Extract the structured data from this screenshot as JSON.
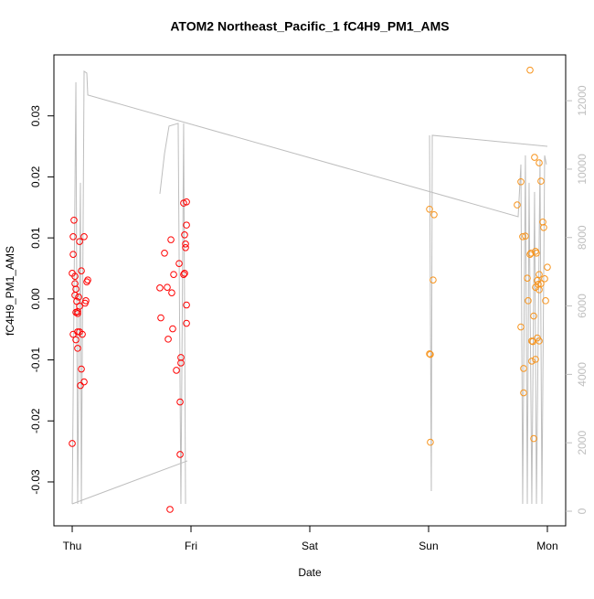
{
  "chart_data": {
    "type": "scatter",
    "title": "ATOM2 Northeast_Pacific_1 fC4H9_PM1_AMS",
    "x_label": "Date",
    "y_label": "fC4H9_PM1_AMS",
    "xlim": [
      -0.154,
      4.154
    ],
    "ylim": [
      -0.0372,
      0.04
    ],
    "y2lim": [
      -428,
      13340
    ],
    "xticks": [
      {
        "value": 0,
        "label": "Thu"
      },
      {
        "value": 1,
        "label": "Fri"
      },
      {
        "value": 2,
        "label": "Sat"
      },
      {
        "value": 3,
        "label": "Sun"
      },
      {
        "value": 4,
        "label": "Mon"
      }
    ],
    "yticks": [
      -0.03,
      -0.02,
      -0.01,
      {
        "value": 0,
        "label": "0.00"
      },
      0.01,
      0.02,
      0.03
    ],
    "y2ticks": [
      0,
      2000,
      4000,
      6000,
      8000,
      10000,
      12000
    ],
    "series": [
      {
        "color": "#bebebe",
        "axis": "y2",
        "kind": "line",
        "x": [
          0,
          0.031,
          0.046,
          0.069,
          0.077,
          0.1,
          0.123,
          0.131,
          3.754,
          3.777,
          3.792,
          3.815,
          3.831,
          3.846,
          3.869,
          3.892,
          3.908,
          3.938,
          3.954,
          3.977,
          3.992,
          null,
          0,
          0.969,
          null,
          0.738,
          0.777,
          0.815,
          0.892,
          0.915,
          0.938,
          0.954,
          null,
          3.008,
          3.023,
          3.031,
          4.0
        ],
        "values": [
          214,
          12540,
          214,
          9599,
          214,
          12861,
          12807,
          12166,
          8610,
          10134,
          214,
          10401,
          214,
          9599,
          214,
          9332,
          214,
          10267,
          214,
          10401,
          10134,
          null,
          214,
          1471,
          null,
          9278,
          10455,
          11257,
          11337,
          214,
          11337,
          214,
          null,
          10989,
          588,
          10989,
          10668
        ]
      },
      {
        "color": "#ff0000",
        "kind": "points",
        "x": [
          0.015,
          0.008,
          0.008,
          0,
          0.023,
          0.023,
          0.031,
          0.023,
          0.038,
          0.046,
          0.031,
          0.046,
          0.062,
          0.054,
          0.077,
          0.1,
          0.062,
          0.131,
          0.123,
          0.115,
          0.108,
          0.008,
          0.031,
          0.046,
          0.046,
          0.062,
          0.085,
          0.077,
          0.069,
          0.1,
          0,
          0.738,
          0.746,
          0.777,
          0.8,
          0.808,
          0.831,
          0.838,
          0.854,
          0.846,
          0.877,
          0.9,
          0.915,
          0.915,
          0.908,
          0.938,
          0.946,
          0.946,
          0.954,
          0.954,
          0.938,
          0.962,
          0.962,
          0.962,
          0.962,
          0.908,
          0.823
        ],
        "values": [
          0.0129,
          0.0102,
          0.0073,
          0.0042,
          0.0037,
          0.0025,
          0.0016,
          0.0006,
          -0.0004,
          -0.0024,
          -0.0022,
          -0.0021,
          -0.0012,
          0.0003,
          0.0046,
          0.0102,
          0.0094,
          0.0031,
          0.0028,
          -0.0003,
          -0.0007,
          -0.0058,
          -0.0067,
          -0.0081,
          -0.0054,
          -0.0054,
          -0.0058,
          -0.0115,
          -0.0142,
          -0.0136,
          -0.0237,
          0.0018,
          -0.0031,
          0.0075,
          0.0019,
          -0.0066,
          0.0097,
          0.001,
          0.004,
          -0.0049,
          -0.0117,
          0.0058,
          -0.0096,
          -0.0105,
          -0.0169,
          0.004,
          0.0042,
          0.0105,
          0.009,
          0.0084,
          0.0157,
          0.0159,
          0.0121,
          -0.001,
          -0.004,
          -0.0255,
          -0.0345
        ]
      },
      {
        "color": "#f7941d",
        "kind": "points",
        "x": [
          3.008,
          3.046,
          3.038,
          3.008,
          3.015,
          3.015,
          3.854,
          3.746,
          3.777,
          3.792,
          3.815,
          3.777,
          3.8,
          3.8,
          3.831,
          3.838,
          3.854,
          3.862,
          3.885,
          3.892,
          3.9,
          3.908,
          3.869,
          3.877,
          3.9,
          3.915,
          3.931,
          3.915,
          3.931,
          3.923,
          3.931,
          3.946,
          3.962,
          3.969,
          3.977,
          3.985,
          4.0,
          3.869,
          3.9,
          3.885,
          3.946,
          3.931
        ],
        "values": [
          0.0147,
          0.0138,
          0.0031,
          -0.009,
          -0.0091,
          -0.0235,
          0.0375,
          0.0154,
          0.0192,
          0.0102,
          0.0103,
          -0.0046,
          -0.0114,
          -0.0154,
          0.0034,
          -0.0003,
          0.0073,
          0.0075,
          -0.0028,
          0.0232,
          0.0078,
          0.0075,
          -0.0069,
          -0.007,
          0.0019,
          0.003,
          -0.0069,
          -0.0064,
          0.0223,
          0.0024,
          0.004,
          0.0193,
          0.0126,
          0.0117,
          0.0033,
          -0.0003,
          0.0052,
          -0.0102,
          -0.0099,
          -0.0229,
          0.0025,
          0.0015
        ]
      }
    ]
  }
}
